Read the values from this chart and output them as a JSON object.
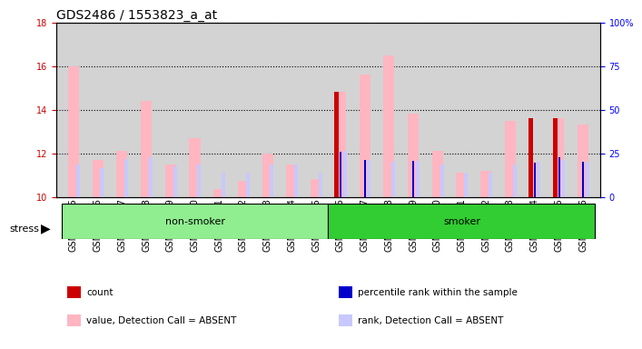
{
  "title": "GDS2486 / 1553823_a_at",
  "samples": [
    "GSM101095",
    "GSM101096",
    "GSM101097",
    "GSM101098",
    "GSM101099",
    "GSM101100",
    "GSM101101",
    "GSM101102",
    "GSM101103",
    "GSM101104",
    "GSM101105",
    "GSM101106",
    "GSM101107",
    "GSM101108",
    "GSM101109",
    "GSM101110",
    "GSM101111",
    "GSM101112",
    "GSM101113",
    "GSM101114",
    "GSM101115",
    "GSM101116"
  ],
  "value_absent": [
    16.0,
    11.7,
    12.1,
    14.4,
    11.5,
    12.7,
    10.35,
    10.75,
    12.0,
    11.5,
    10.8,
    14.8,
    15.6,
    16.5,
    13.8,
    12.1,
    11.1,
    11.2,
    13.5,
    11.6,
    13.6,
    13.3
  ],
  "rank_absent": [
    11.5,
    11.3,
    11.75,
    11.8,
    11.4,
    11.5,
    11.1,
    11.1,
    11.5,
    11.5,
    11.1,
    12.1,
    11.7,
    11.6,
    11.65,
    11.5,
    11.1,
    11.1,
    11.5,
    11.6,
    11.7,
    11.6
  ],
  "count": [
    0,
    0,
    0,
    0,
    0,
    0,
    0,
    0,
    0,
    0,
    0,
    14.8,
    0,
    0,
    0,
    0,
    0,
    0,
    0,
    13.6,
    13.6,
    0
  ],
  "percentile_rank": [
    0,
    0,
    0,
    0,
    0,
    0,
    0,
    0,
    0,
    0,
    0,
    12.05,
    11.7,
    0,
    11.65,
    0,
    0,
    0,
    0,
    11.55,
    11.8,
    11.6
  ],
  "group_nonsmoker": [
    0,
    11
  ],
  "group_smoker": [
    11,
    21
  ],
  "ylim": [
    10,
    18
  ],
  "y2lim": [
    0,
    100
  ],
  "yticks": [
    10,
    12,
    14,
    16,
    18
  ],
  "y2ticks": [
    0,
    25,
    50,
    75,
    100
  ],
  "bar_width": 0.3,
  "color_value_absent": "#FFB6C1",
  "color_rank_absent": "#C8C8FF",
  "color_count": "#CC0000",
  "color_percentile": "#0000CC",
  "color_nonsmoker_bg": "#90EE90",
  "color_smoker_bg": "#32CD32",
  "color_grid": "#000000",
  "plot_bg": "#D3D3D3",
  "axis_bg": "#D3D3D3",
  "title_fontsize": 10,
  "tick_fontsize": 7,
  "label_fontsize": 8
}
